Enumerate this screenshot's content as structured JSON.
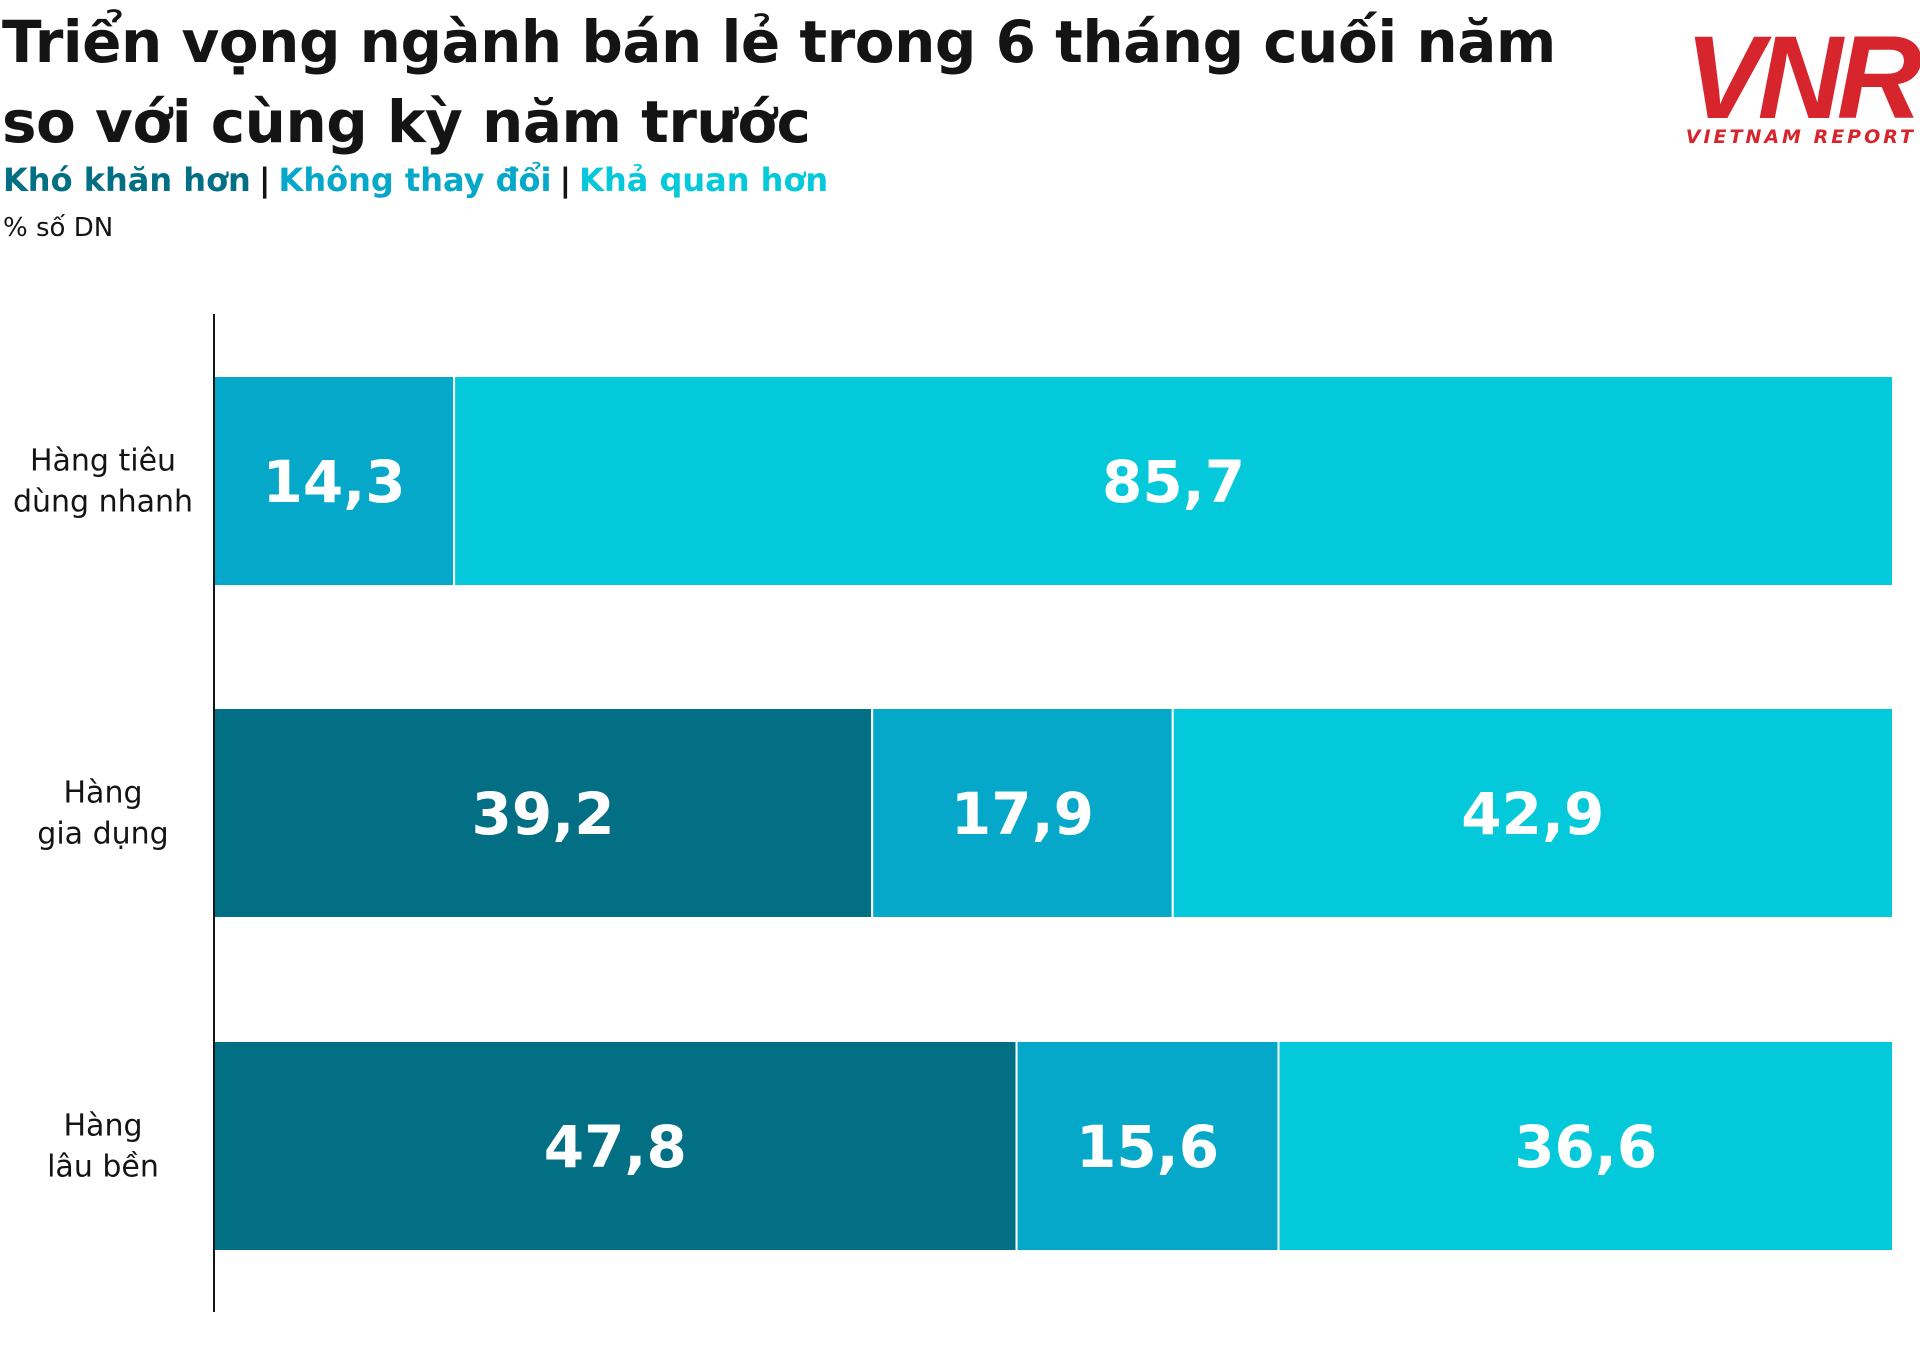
{
  "title_lines": [
    "Triển vọng ngành bán lẻ trong 6 tháng cuối năm",
    "so với cùng kỳ năm trước"
  ],
  "legend": {
    "items": [
      "Khó khăn hơn",
      "Không thay đổi",
      "Khả quan hơn"
    ],
    "separator": "|"
  },
  "unit_label": "% số DN",
  "logo": {
    "text": "VNR",
    "caption": "VIETNAM REPORT",
    "color": "#d6252c"
  },
  "colors": {
    "kho_khan_hon": "#026f84",
    "khong_thay_doi": "#06a8c9",
    "kha_quan_hon": "#04c9da",
    "axis": "#141414"
  },
  "chart_data": {
    "type": "bar",
    "orientation": "horizontal",
    "stacked": true,
    "categories": [
      [
        "Hàng tiêu",
        "dùng nhanh"
      ],
      [
        "Hàng",
        "gia dụng"
      ],
      [
        "Hàng",
        "lâu bền"
      ]
    ],
    "series": [
      {
        "name": "Khó khăn hơn",
        "values": [
          0,
          39.2,
          47.8
        ],
        "labels": [
          "",
          "39,2",
          "47,8"
        ]
      },
      {
        "name": "Không thay đổi",
        "values": [
          14.3,
          17.9,
          15.6
        ],
        "labels": [
          "14,3",
          "17,9",
          "15,6"
        ]
      },
      {
        "name": "Khả quan hơn",
        "values": [
          85.7,
          42.9,
          36.6
        ],
        "labels": [
          "85,7",
          "42,9",
          "36,6"
        ]
      }
    ],
    "xlim": [
      0,
      100
    ],
    "grid": false,
    "legend_position": "top-left"
  }
}
